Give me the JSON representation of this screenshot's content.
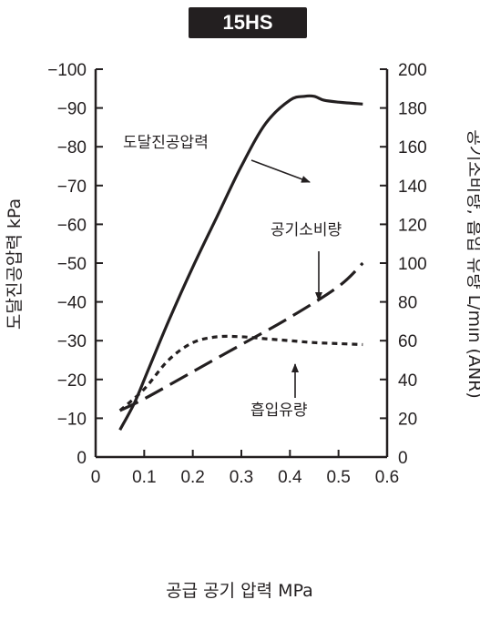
{
  "chart_data": {
    "type": "line",
    "title": "15HS",
    "xlabel": "공급 공기 압력 MPa",
    "ylabel_left": "도달진공압력 kPa",
    "ylabel_right": "공기소비량, 흡입 유량 L/min (ANR)",
    "xlim": [
      0,
      0.6
    ],
    "ylim_left": [
      0,
      -100
    ],
    "ylim_right": [
      0,
      200
    ],
    "x_ticks": [
      "0",
      "0.1",
      "0.2",
      "0.3",
      "0.4",
      "0.5",
      "0.6"
    ],
    "y_left_ticks": [
      "0",
      "−10",
      "−20",
      "−30",
      "−40",
      "−50",
      "−60",
      "−70",
      "−80",
      "−90",
      "−100"
    ],
    "y_right_ticks": [
      "0",
      "20",
      "40",
      "60",
      "80",
      "100",
      "120",
      "140",
      "160",
      "180",
      "200"
    ],
    "grid": false,
    "series": [
      {
        "name": "도달진공압력",
        "axis": "left",
        "style": "solid",
        "x": [
          0.05,
          0.08,
          0.11,
          0.15,
          0.2,
          0.25,
          0.3,
          0.35,
          0.4,
          0.43,
          0.45,
          0.47,
          0.5,
          0.55
        ],
        "y": [
          -7,
          -14,
          -23,
          -35,
          -49,
          -62,
          -75,
          -86,
          -92,
          -93,
          -93,
          -92,
          -91.5,
          -91
        ]
      },
      {
        "name": "공기소비량",
        "axis": "right",
        "style": "dashed",
        "x": [
          0.05,
          0.1,
          0.2,
          0.3,
          0.4,
          0.5,
          0.55
        ],
        "y": [
          24,
          30,
          44,
          58,
          72,
          88,
          100
        ]
      },
      {
        "name": "흡입 유량",
        "axis": "right",
        "style": "dotted",
        "x": [
          0.05,
          0.1,
          0.15,
          0.2,
          0.25,
          0.3,
          0.35,
          0.4,
          0.45,
          0.5,
          0.55
        ],
        "y": [
          24,
          35,
          50,
          59,
          62,
          62,
          61,
          60,
          59,
          58.5,
          58
        ]
      }
    ],
    "annotations": [
      {
        "text": "도달진공압력",
        "points_to_series": "도달진공압력"
      },
      {
        "text": "공기소비량",
        "points_to_series": "공기소비량"
      },
      {
        "text": "흡입유량",
        "points_to_series": "흡입 유량"
      }
    ],
    "line_color": "#231f20"
  }
}
